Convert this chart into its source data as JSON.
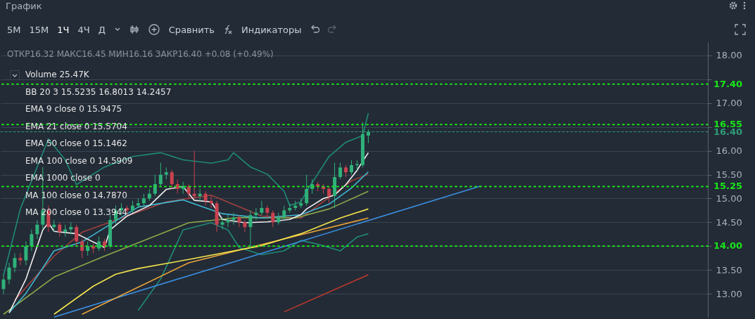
{
  "chart_data": {
    "type": "candlestick",
    "title": "График",
    "subtitle": "ОТКР16.32  МАКС16.45  МИН16.16  ЗАКР16.40  +0.08 (+0.49%)",
    "annotations": [
      "5M",
      "15M",
      "1Ч",
      "4Ч",
      "Д",
      "Сравнить",
      "Индикаторы",
      "Volume 25.47K",
      "BB 20 3 15.5235 16.8013 14.2457",
      "EMA 9 close 0 15.9475",
      "EMA 21 close 0 15.5704",
      "EMA 50 close 0 15.1462",
      "EMA 100 close 0 14.5909",
      "EMA 1000 close 0",
      "MA 100 close 0 14.7870",
      "MA 200 close 0 13.3944"
    ],
    "categories": [
      null,
      null,
      null,
      null,
      null,
      null,
      null,
      null,
      null,
      null,
      null,
      null,
      null,
      null,
      null,
      null,
      null,
      null,
      null,
      null,
      null,
      null,
      null,
      null,
      null,
      null,
      null,
      null,
      null,
      null,
      null,
      null,
      null,
      null,
      null,
      null,
      null,
      null,
      null,
      null,
      null,
      null,
      null,
      null,
      null,
      null,
      null,
      null,
      null,
      null,
      null,
      null,
      null,
      null,
      null,
      null,
      null,
      null,
      null,
      null,
      null,
      null,
      null,
      null,
      null,
      null,
      null,
      null,
      null,
      null,
      null,
      null,
      null,
      null,
      null,
      null,
      null,
      null,
      null,
      null,
      null,
      null,
      null,
      null,
      null,
      null,
      null,
      null,
      null,
      null,
      null,
      null,
      null,
      null,
      null,
      null,
      null,
      null,
      null,
      null,
      null,
      null,
      null,
      null,
      null,
      null,
      null,
      null,
      null,
      null,
      null,
      null,
      null,
      null,
      null,
      null,
      null,
      null,
      null,
      null,
      null,
      null,
      null,
      null,
      null,
      null
    ],
    "ohlc": [
      [
        13.1,
        13.4,
        13.0,
        13.3
      ],
      [
        13.3,
        13.65,
        13.2,
        13.55
      ],
      [
        13.55,
        13.85,
        13.45,
        13.75
      ],
      [
        13.75,
        13.85,
        13.6,
        13.7
      ],
      [
        13.7,
        14.1,
        13.6,
        14.0
      ],
      [
        14.0,
        14.35,
        13.9,
        14.25
      ],
      [
        14.25,
        14.55,
        14.15,
        14.45
      ],
      [
        14.45,
        15.66,
        14.35,
        14.75
      ],
      [
        14.75,
        14.85,
        14.3,
        14.4
      ],
      [
        14.4,
        14.55,
        14.3,
        14.45
      ],
      [
        14.45,
        14.5,
        14.2,
        14.3
      ],
      [
        14.3,
        14.45,
        14.2,
        14.35
      ],
      [
        14.35,
        14.5,
        14.25,
        14.4
      ],
      [
        14.4,
        14.45,
        14.0,
        14.1
      ],
      [
        14.1,
        14.15,
        13.75,
        13.9
      ],
      [
        13.9,
        14.1,
        13.8,
        14.0
      ],
      [
        14.0,
        14.05,
        13.85,
        13.95
      ],
      [
        13.95,
        14.2,
        13.9,
        14.1
      ],
      [
        14.1,
        14.15,
        13.9,
        14.0
      ],
      [
        14.0,
        14.65,
        13.95,
        14.55
      ],
      [
        14.55,
        14.85,
        14.45,
        14.75
      ],
      [
        14.75,
        14.9,
        14.65,
        14.8
      ],
      [
        14.8,
        14.85,
        14.65,
        14.75
      ],
      [
        14.75,
        14.95,
        14.7,
        14.85
      ],
      [
        14.85,
        15.0,
        14.8,
        14.9
      ],
      [
        14.9,
        15.1,
        14.85,
        15.0
      ],
      [
        15.0,
        15.2,
        14.95,
        15.1
      ],
      [
        15.1,
        15.5,
        15.05,
        15.3
      ],
      [
        15.3,
        15.75,
        15.25,
        15.5
      ],
      [
        15.5,
        15.65,
        15.4,
        15.55
      ],
      [
        15.55,
        15.6,
        15.2,
        15.3
      ],
      [
        15.3,
        15.4,
        15.1,
        15.2
      ],
      [
        15.2,
        15.35,
        15.1,
        15.25
      ],
      [
        15.25,
        15.3,
        15.0,
        15.1
      ],
      [
        15.1,
        16.0,
        15.0,
        15.05
      ],
      [
        15.05,
        15.2,
        14.95,
        15.1
      ],
      [
        15.1,
        15.15,
        14.85,
        14.95
      ],
      [
        14.95,
        15.05,
        14.8,
        14.9
      ],
      [
        14.9,
        14.95,
        14.3,
        14.45
      ],
      [
        14.45,
        14.6,
        14.35,
        14.5
      ],
      [
        14.5,
        14.65,
        14.4,
        14.55
      ],
      [
        14.55,
        14.7,
        14.45,
        14.6
      ],
      [
        14.6,
        14.65,
        14.4,
        14.5
      ],
      [
        14.5,
        14.55,
        14.3,
        14.4
      ],
      [
        14.4,
        14.75,
        13.95,
        14.65
      ],
      [
        14.65,
        14.8,
        14.55,
        14.7
      ],
      [
        14.7,
        14.95,
        14.65,
        14.8
      ],
      [
        14.8,
        14.85,
        14.6,
        14.7
      ],
      [
        14.7,
        14.75,
        14.4,
        14.5
      ],
      [
        14.5,
        14.7,
        14.45,
        14.6
      ],
      [
        14.6,
        14.85,
        14.55,
        14.75
      ],
      [
        14.75,
        14.9,
        14.7,
        14.8
      ],
      [
        14.8,
        14.95,
        14.75,
        14.85
      ],
      [
        14.85,
        15.0,
        14.8,
        14.9
      ],
      [
        14.9,
        15.5,
        14.85,
        15.2
      ],
      [
        15.2,
        15.4,
        15.1,
        15.3
      ],
      [
        15.3,
        15.35,
        15.15,
        15.25
      ],
      [
        15.25,
        15.3,
        15.1,
        15.2
      ],
      [
        15.2,
        15.25,
        14.9,
        15.05
      ],
      [
        15.05,
        15.75,
        14.8,
        15.45
      ],
      [
        15.45,
        15.75,
        15.4,
        15.65
      ],
      [
        15.65,
        15.7,
        15.45,
        15.55
      ],
      [
        15.55,
        15.8,
        15.5,
        15.7
      ],
      [
        15.7,
        15.8,
        15.6,
        15.72
      ],
      [
        15.7,
        16.6,
        15.65,
        16.35
      ],
      [
        16.32,
        16.45,
        16.16,
        16.4
      ],
      null,
      null,
      null,
      null,
      null,
      null,
      null,
      null,
      null,
      null,
      null,
      null,
      null,
      null,
      null,
      null,
      null,
      null,
      null,
      null,
      null,
      null,
      null,
      null,
      null,
      null,
      null,
      null,
      null,
      null,
      null,
      null,
      null,
      null,
      null,
      null,
      null,
      null,
      null,
      null,
      null,
      null,
      null,
      null,
      null,
      null,
      null,
      null,
      null,
      null,
      null,
      null,
      null,
      null,
      null,
      null,
      null,
      null,
      null,
      null
    ],
    "series": [
      {
        "type": "line",
        "color": "#1f8a78",
        "values": [
          13.38,
          null,
          null,
          14.78,
          null,
          null,
          null,
          null,
          16.25,
          null,
          null,
          15.81,
          null,
          15.29,
          null,
          null,
          null,
          null,
          15.66,
          null,
          null,
          null,
          null,
          15.88,
          null,
          null,
          null,
          null,
          15.96,
          null,
          null,
          null,
          15.81,
          null,
          null,
          null,
          null,
          15.74,
          null,
          null,
          15.81,
          15.96,
          null,
          null,
          15.66,
          null,
          null,
          15.51,
          null,
          null,
          15.15,
          14.85,
          null,
          14.93,
          15.15,
          null,
          null,
          null,
          15.88,
          null,
          null,
          16.18,
          null,
          null,
          16.32,
          16.79,
          null,
          null,
          null,
          null,
          null,
          null,
          null,
          null,
          null,
          null,
          null,
          null,
          null,
          null,
          null,
          null,
          null,
          null,
          null,
          null,
          null,
          null,
          null,
          null,
          null,
          null,
          null,
          null,
          null,
          null,
          null,
          null,
          null,
          null,
          null,
          null,
          null,
          null,
          null,
          null,
          null,
          null,
          null,
          null,
          null,
          null,
          null,
          null,
          null,
          null,
          null,
          null,
          null,
          null,
          null,
          null,
          null,
          null,
          null,
          null
        ]
      },
      {
        "type": "line",
        "color": "#1f8a78",
        "values": [
          null,
          null,
          null,
          null,
          null,
          null,
          null,
          null,
          null,
          null,
          null,
          null,
          null,
          null,
          null,
          null,
          null,
          null,
          null,
          null,
          null,
          null,
          null,
          null,
          12.65,
          null,
          null,
          null,
          13.31,
          null,
          null,
          null,
          14.34,
          null,
          null,
          null,
          null,
          14.49,
          null,
          null,
          14.34,
          null,
          13.97,
          null,
          null,
          null,
          13.82,
          null,
          null,
          null,
          13.9,
          null,
          null,
          14.12,
          null,
          null,
          14.04,
          null,
          null,
          null,
          13.9,
          null,
          null,
          14.19,
          null,
          14.26,
          null,
          null,
          null,
          null,
          null,
          null,
          null,
          null,
          null,
          null,
          null,
          null,
          null,
          null,
          null,
          null,
          null,
          null,
          null,
          null,
          null,
          null,
          null,
          null,
          null,
          null,
          null,
          null,
          null,
          null,
          null,
          null,
          null,
          null,
          null,
          null,
          null,
          null,
          null,
          null,
          null,
          null,
          null,
          null,
          null,
          null,
          null,
          null,
          null,
          null,
          null,
          null,
          null,
          null,
          null,
          null,
          null,
          null,
          null,
          null
        ]
      },
      {
        "type": "line",
        "color": "#a0413f",
        "values": [
          null,
          null,
          12.87,
          null,
          null,
          null,
          null,
          null,
          null,
          13.79,
          null,
          null,
          null,
          null,
          14.29,
          null,
          null,
          null,
          null,
          null,
          null,
          null,
          null,
          null,
          null,
          null,
          null,
          null,
          null,
          14.93,
          null,
          null,
          null,
          null,
          null,
          null,
          null,
          15.07,
          null,
          null,
          null,
          null,
          null,
          null,
          null,
          null,
          14.63,
          null,
          null,
          null,
          null,
          null,
          null,
          14.59,
          null,
          null,
          null,
          null,
          null,
          null,
          null,
          null,
          15.37,
          null,
          null,
          15.51,
          null,
          null,
          null,
          null,
          null,
          null,
          null,
          null,
          null,
          null,
          null,
          null,
          null,
          null,
          null,
          null,
          null,
          null,
          null,
          null,
          null,
          null,
          null,
          null,
          null,
          null,
          null,
          null,
          null,
          null,
          null,
          null,
          null,
          null,
          null,
          null,
          null,
          null,
          null,
          null,
          null,
          null,
          null,
          null,
          null,
          null,
          null,
          null,
          null,
          null,
          null,
          null,
          null,
          null,
          null,
          null,
          null,
          null,
          null,
          null
        ]
      },
      {
        "type": "line",
        "color": "#3a8ee0",
        "values": [
          null,
          null,
          null,
          null,
          null,
          null,
          null,
          null,
          null,
          12.51,
          null,
          null,
          null,
          null,
          null,
          null,
          null,
          null,
          null,
          null,
          null,
          null,
          null,
          null,
          null,
          null,
          null,
          null,
          null,
          null,
          null,
          null,
          null,
          null,
          null,
          null,
          null,
          null,
          null,
          null,
          null,
          null,
          null,
          null,
          null,
          null,
          null,
          null,
          null,
          null,
          null,
          null,
          null,
          null,
          null,
          null,
          null,
          null,
          null,
          null,
          null,
          null,
          null,
          null,
          null,
          null,
          null,
          null,
          null,
          null,
          null,
          null,
          null,
          null,
          null,
          null,
          null,
          null,
          null,
          null,
          null,
          null,
          null,
          null,
          null,
          15.26,
          null,
          null,
          null,
          null,
          null,
          null,
          null,
          null,
          null,
          null,
          null,
          null,
          null,
          null,
          null,
          null,
          null,
          null,
          null,
          null,
          null,
          null,
          null,
          null,
          null,
          null,
          null,
          null,
          null,
          null,
          null,
          null,
          null,
          null,
          null,
          null,
          null,
          null,
          null,
          null
        ]
      },
      {
        "type": "line",
        "color": "#c0392b",
        "values": [
          null,
          null,
          null,
          null,
          null,
          null,
          null,
          null,
          null,
          null,
          null,
          null,
          null,
          null,
          null,
          null,
          null,
          null,
          null,
          null,
          null,
          null,
          null,
          null,
          null,
          null,
          null,
          null,
          null,
          null,
          null,
          null,
          null,
          null,
          null,
          null,
          null,
          null,
          null,
          null,
          null,
          null,
          null,
          null,
          null,
          null,
          null,
          null,
          null,
          null,
          12.62,
          null,
          null,
          null,
          null,
          null,
          null,
          null,
          null,
          null,
          null,
          null,
          null,
          null,
          null,
          13.4,
          null,
          null,
          null,
          null,
          null,
          null,
          null,
          null,
          null,
          null,
          null,
          null,
          null,
          null,
          null,
          null,
          null,
          null,
          null,
          null,
          null,
          null,
          null,
          null,
          null,
          null,
          null,
          null,
          null,
          null,
          null,
          null,
          null,
          null,
          null,
          null,
          null,
          null,
          null,
          null,
          null,
          null,
          null,
          null,
          null,
          null,
          null,
          null,
          null,
          null,
          null,
          null,
          null,
          null,
          null,
          null,
          null,
          null,
          null,
          null
        ]
      },
      {
        "type": "line",
        "color": "#e8a33a",
        "values": [
          null,
          null,
          null,
          null,
          null,
          null,
          null,
          null,
          null,
          null,
          null,
          null,
          null,
          null,
          12.57,
          null,
          null,
          null,
          null,
          null,
          null,
          null,
          null,
          null,
          null,
          null,
          null,
          null,
          null,
          null,
          null,
          null,
          null,
          13.65,
          null,
          null,
          null,
          null,
          null,
          null,
          null,
          null,
          null,
          null,
          null,
          null,
          null,
          null,
          null,
          null,
          14.15,
          null,
          null,
          null,
          null,
          null,
          null,
          null,
          null,
          null,
          null,
          null,
          null,
          null,
          null,
          14.59,
          null,
          null,
          null,
          null,
          null,
          null,
          null,
          null,
          null,
          null,
          null,
          null,
          null,
          null,
          null,
          null,
          null,
          null,
          null,
          null,
          null,
          null,
          null,
          null,
          null,
          null,
          null,
          null,
          null,
          null,
          null,
          null,
          null,
          null,
          null,
          null,
          null,
          null,
          null,
          null,
          null,
          null,
          null,
          null,
          null,
          null,
          null,
          null,
          null,
          null,
          null,
          null,
          null,
          null,
          null,
          null,
          null,
          null,
          null,
          null
        ]
      },
      {
        "type": "line",
        "color": "#8aa84a",
        "values": [
          12.57,
          null,
          null,
          null,
          null,
          null,
          null,
          null,
          null,
          13.35,
          null,
          null,
          null,
          null,
          null,
          null,
          null,
          null,
          13.79,
          null,
          null,
          null,
          null,
          null,
          null,
          null,
          null,
          null,
          null,
          null,
          null,
          null,
          null,
          14.49,
          null,
          null,
          null,
          null,
          null,
          null,
          null,
          null,
          14.6,
          null,
          null,
          null,
          null,
          null,
          null,
          null,
          null,
          null,
          14.59,
          null,
          null,
          null,
          null,
          null,
          14.78,
          null,
          null,
          null,
          null,
          null,
          null,
          15.15,
          null,
          null,
          null,
          null,
          null,
          null,
          null,
          null,
          null,
          null,
          null,
          null,
          null,
          null,
          null,
          null,
          null,
          null,
          null,
          null,
          null,
          null,
          null,
          null,
          null,
          null,
          null,
          null,
          null,
          null,
          null,
          null,
          null,
          null,
          null,
          null,
          null,
          null,
          null,
          null,
          null,
          null,
          null,
          null,
          null,
          null,
          null,
          null,
          null,
          null,
          null,
          null,
          null,
          null,
          null,
          null,
          null,
          null,
          null,
          null
        ]
      },
      {
        "type": "line",
        "color": "#f2e34c",
        "values": [
          null,
          null,
          null,
          null,
          null,
          null,
          null,
          null,
          null,
          12.57,
          null,
          null,
          null,
          null,
          null,
          null,
          13.16,
          null,
          null,
          null,
          13.41,
          null,
          null,
          null,
          13.53,
          null,
          null,
          null,
          null,
          null,
          null,
          null,
          null,
          13.72,
          null,
          null,
          null,
          null,
          null,
          null,
          null,
          null,
          null,
          null,
          null,
          null,
          14.01,
          null,
          null,
          null,
          null,
          null,
          null,
          14.26,
          null,
          null,
          null,
          null,
          null,
          null,
          14.59,
          null,
          null,
          null,
          null,
          14.78,
          null,
          null,
          null,
          null,
          null,
          null,
          null,
          null,
          null,
          null,
          null,
          null,
          null,
          null,
          null,
          null,
          null,
          null,
          null,
          null,
          null,
          null,
          null,
          null,
          null,
          null,
          null,
          null,
          null,
          null,
          null,
          null,
          null,
          null,
          null,
          null,
          null,
          null,
          null,
          null,
          null,
          null,
          null,
          null,
          null,
          null,
          null,
          null,
          null,
          null,
          null,
          null,
          null,
          null,
          null,
          null,
          null,
          null,
          null,
          null
        ]
      },
      {
        "type": "line",
        "color": "#3fb8d0",
        "values": [
          null,
          12.6,
          null,
          null,
          13.01,
          null,
          null,
          null,
          null,
          13.9,
          null,
          null,
          null,
          null,
          14.09,
          null,
          null,
          null,
          null,
          null,
          null,
          null,
          null,
          null,
          14.82,
          null,
          null,
          null,
          null,
          null,
          null,
          null,
          14.97,
          null,
          null,
          null,
          null,
          null,
          null,
          14.68,
          null,
          null,
          null,
          null,
          null,
          null,
          14.59,
          null,
          null,
          null,
          null,
          null,
          null,
          14.66,
          null,
          null,
          null,
          null,
          14.88,
          null,
          null,
          null,
          15.22,
          null,
          null,
          15.56,
          null,
          null,
          null,
          null,
          null,
          null,
          null,
          null,
          null,
          null,
          null,
          null,
          null,
          null,
          null,
          null,
          null,
          null,
          null,
          null,
          null,
          null,
          null,
          null,
          null,
          null,
          null,
          null,
          null,
          null,
          null,
          null,
          null,
          null,
          null,
          null,
          null,
          null,
          null,
          null,
          null,
          null,
          null,
          null,
          null,
          null,
          null,
          null,
          null,
          null,
          null,
          null,
          null,
          null,
          null,
          null,
          null,
          null,
          null,
          null
        ]
      },
      {
        "type": "line",
        "color": "#f0f0f0",
        "values": [
          null,
          12.6,
          null,
          null,
          13.31,
          null,
          null,
          14.34,
          14.49,
          14.31,
          null,
          null,
          null,
          14.26,
          null,
          null,
          null,
          null,
          13.97,
          14.34,
          null,
          null,
          14.63,
          null,
          null,
          null,
          14.85,
          null,
          null,
          15.19,
          null,
          null,
          15.25,
          null,
          14.96,
          null,
          null,
          14.93,
          null,
          14.56,
          null,
          null,
          null,
          14.49,
          null,
          null,
          null,
          14.51,
          null,
          null,
          null,
          14.56,
          null,
          14.66,
          14.78,
          null,
          null,
          15.0,
          null,
          15.07,
          null,
          15.29,
          null,
          15.59,
          15.78,
          15.96,
          null,
          null,
          null,
          null,
          null,
          null,
          null,
          null,
          null,
          null,
          null,
          null,
          null,
          null,
          null,
          null,
          null,
          null,
          null,
          null,
          null,
          null,
          null,
          null,
          null,
          null,
          null,
          null,
          null,
          null,
          null,
          null,
          null,
          null,
          null,
          null,
          null,
          null,
          null,
          null,
          null,
          null,
          null,
          null,
          null,
          null,
          null,
          null,
          null,
          null,
          null,
          null,
          null,
          null,
          null,
          null,
          null,
          null,
          null,
          null
        ]
      }
    ],
    "ylim": [
      12.5,
      18.28
    ],
    "yticks": [
      {
        "value": 13,
        "label": "13.00"
      },
      {
        "value": 13.5,
        "label": "13.50"
      },
      {
        "value": 14,
        "label": null
      },
      {
        "value": 14.5,
        "label": "14.50"
      },
      {
        "value": 15,
        "label": "15.00"
      },
      {
        "value": 15.5,
        "label": "15.50"
      },
      {
        "value": 16,
        "label": "16.00"
      },
      {
        "value": 16.5,
        "label": null
      },
      {
        "value": 17,
        "label": "17.00"
      },
      {
        "value": 17.5,
        "label": null
      },
      {
        "value": 18,
        "label": "18.00"
      }
    ],
    "ref_lines": [
      {
        "axis": "y",
        "value": 17.4,
        "label": "17.40",
        "color": "#19e619",
        "line_style": "dotted"
      },
      {
        "axis": "y",
        "value": 16.55,
        "label": "16.55",
        "color": "#19e619",
        "line_style": "dotted"
      },
      {
        "axis": "y",
        "value": 16.4,
        "label": "16.40",
        "color": "#2f9c78",
        "line_style": "dashed"
      },
      {
        "axis": "y",
        "value": 15.25,
        "label": "15.25",
        "color": "#19e619",
        "line_style": "dotted"
      },
      {
        "axis": "y",
        "value": 14.0,
        "label": "14.00",
        "color": "#19e619",
        "line_style": "dotted"
      }
    ],
    "grid": "y",
    "tick_labels": "y"
  }
}
